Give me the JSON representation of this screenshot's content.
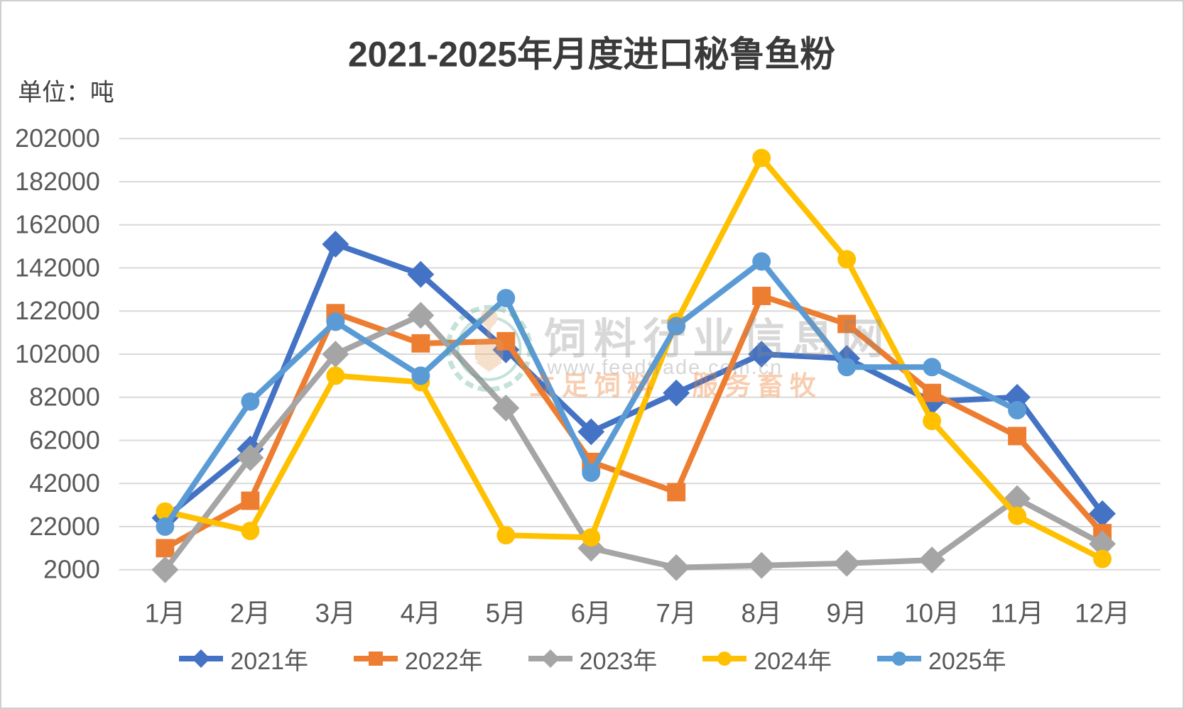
{
  "chart_data": {
    "type": "line",
    "title": "2021-2025年月度进口秘鲁鱼粉",
    "unit_label": "单位：吨",
    "categories": [
      "1月",
      "2月",
      "3月",
      "4月",
      "5月",
      "6月",
      "7月",
      "8月",
      "9月",
      "10月",
      "11月",
      "12月"
    ],
    "ylim": [
      2000,
      202000
    ],
    "ytick_step": 20000,
    "yticks": [
      2000,
      22000,
      42000,
      62000,
      82000,
      102000,
      122000,
      142000,
      162000,
      182000,
      202000
    ],
    "grid": true,
    "legend_position": "bottom",
    "series": [
      {
        "name": "2021年",
        "color": "#4472C4",
        "marker": "diamond",
        "values": [
          26000,
          58000,
          153000,
          139000,
          104000,
          66000,
          84000,
          102000,
          100000,
          80000,
          82000,
          28000
        ]
      },
      {
        "name": "2022年",
        "color": "#ED7D31",
        "marker": "square",
        "values": [
          12000,
          34000,
          121000,
          107000,
          108000,
          52000,
          38000,
          129000,
          116000,
          84000,
          64000,
          19000
        ]
      },
      {
        "name": "2023年",
        "color": "#A5A5A5",
        "marker": "diamond",
        "values": [
          2000,
          54000,
          102000,
          120000,
          77000,
          12000,
          3000,
          4000,
          5000,
          6500,
          35000,
          14000
        ]
      },
      {
        "name": "2024年",
        "color": "#FFC000",
        "marker": "circle",
        "values": [
          29000,
          20000,
          92000,
          89000,
          18000,
          17000,
          117000,
          193000,
          146000,
          71000,
          27000,
          7000
        ]
      },
      {
        "name": "2025年",
        "color": "#5B9BD5",
        "marker": "circle",
        "values": [
          22000,
          80000,
          117000,
          92000,
          128000,
          47000,
          115000,
          145000,
          96000,
          96000,
          76000,
          null
        ]
      }
    ]
  },
  "watermark": {
    "site_name": "饲料行业信息网",
    "url": "www.feedtrade.com.cn",
    "slogan": "立足饲料　服务畜牧"
  },
  "colors": {
    "grid": "#D9D9D9",
    "axis_text": "#595959",
    "title_text": "#3A3A3A",
    "watermark_gray": "#8C8C8C",
    "watermark_orange": "#ED7D31",
    "watermark_teal": "#4AA38F"
  }
}
